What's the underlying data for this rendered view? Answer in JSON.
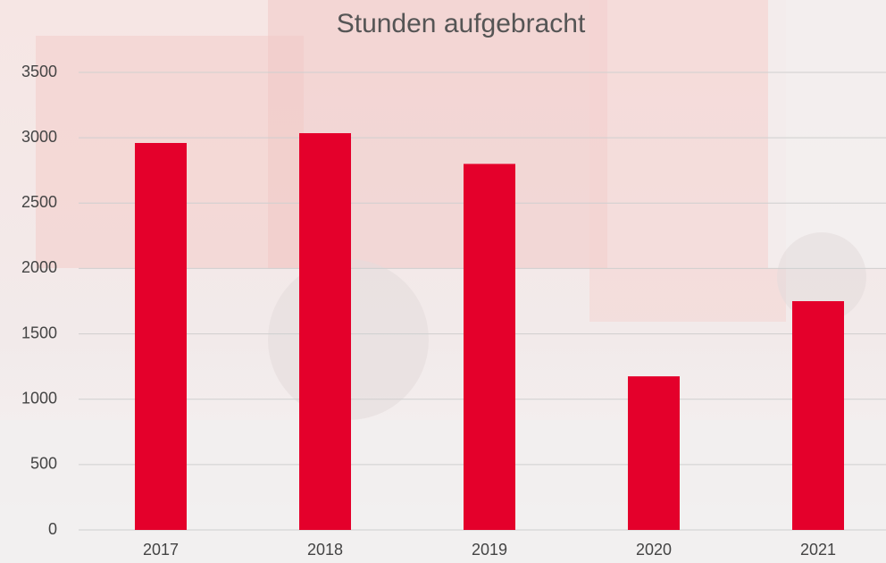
{
  "chart_data": {
    "type": "bar",
    "title": "Stunden aufgebracht",
    "categories": [
      "2017",
      "2018",
      "2019",
      "2020",
      "2021"
    ],
    "values": [
      2960,
      3035,
      2800,
      1175,
      1750
    ],
    "color": "#e4002b",
    "ylim": [
      0,
      3500
    ],
    "yticks": [
      0,
      500,
      1000,
      1500,
      2000,
      2500,
      3000,
      3500
    ],
    "grid": true
  }
}
